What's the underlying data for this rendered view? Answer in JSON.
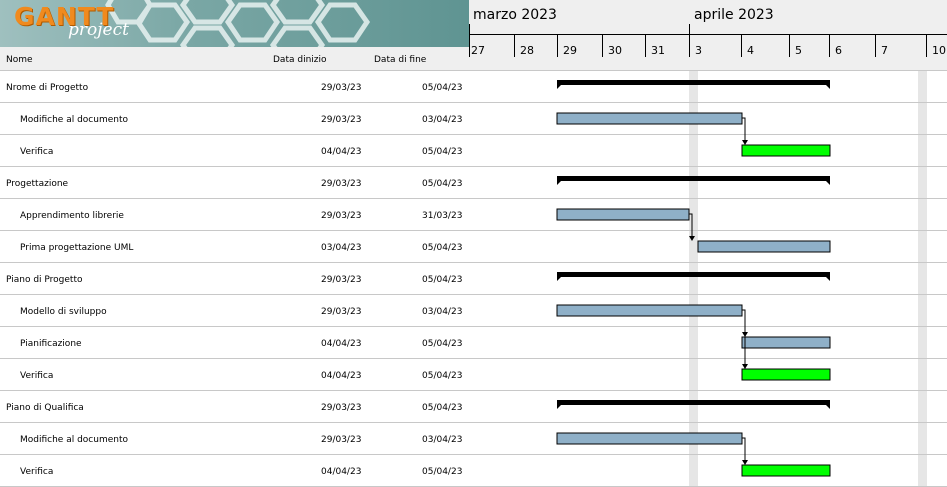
{
  "logo": {
    "brand": "GANTT",
    "sub": "project"
  },
  "table_header": {
    "name": "Nome",
    "start": "Data dinizio",
    "end": "Data di fine"
  },
  "timeline": {
    "months": [
      {
        "label": "marzo 2023"
      },
      {
        "label": "aprile 2023"
      }
    ],
    "days": [
      "27",
      "28",
      "29",
      "30",
      "31",
      "3",
      "4",
      "5",
      "6",
      "7",
      "10"
    ]
  },
  "tasks": [
    {
      "name": "Nrome di Progetto",
      "start": "29/03/23",
      "end": "05/04/23",
      "level": 0,
      "type": "summary"
    },
    {
      "name": "Modifiche al documento",
      "start": "29/03/23",
      "end": "03/04/23",
      "level": 1,
      "type": "task",
      "color": "#8fb0c8"
    },
    {
      "name": "Verifica",
      "start": "04/04/23",
      "end": "05/04/23",
      "level": 1,
      "type": "task",
      "color": "#00ff00"
    },
    {
      "name": "Progettazione",
      "start": "29/03/23",
      "end": "05/04/23",
      "level": 0,
      "type": "summary"
    },
    {
      "name": "Apprendimento librerie",
      "start": "29/03/23",
      "end": "31/03/23",
      "level": 1,
      "type": "task",
      "color": "#8fb0c8"
    },
    {
      "name": "Prima progettazione UML",
      "start": "03/04/23",
      "end": "05/04/23",
      "level": 1,
      "type": "task",
      "color": "#8fb0c8"
    },
    {
      "name": "Piano di Progetto",
      "start": "29/03/23",
      "end": "05/04/23",
      "level": 0,
      "type": "summary"
    },
    {
      "name": "Modello di sviluppo",
      "start": "29/03/23",
      "end": "03/04/23",
      "level": 1,
      "type": "task",
      "color": "#8fb0c8"
    },
    {
      "name": "Pianificazione",
      "start": "04/04/23",
      "end": "05/04/23",
      "level": 1,
      "type": "task",
      "color": "#8fb0c8"
    },
    {
      "name": "Verifica",
      "start": "04/04/23",
      "end": "05/04/23",
      "level": 1,
      "type": "task",
      "color": "#00ff00"
    },
    {
      "name": "Piano di Qualifica",
      "start": "29/03/23",
      "end": "05/04/23",
      "level": 0,
      "type": "summary"
    },
    {
      "name": "Modifiche al documento",
      "start": "29/03/23",
      "end": "03/04/23",
      "level": 1,
      "type": "task",
      "color": "#8fb0c8"
    },
    {
      "name": "Verifica",
      "start": "04/04/23",
      "end": "05/04/23",
      "level": 1,
      "type": "task",
      "color": "#00ff00"
    }
  ],
  "dependencies": [
    {
      "from": 1,
      "to": 2
    },
    {
      "from": 4,
      "to": 5
    },
    {
      "from": 7,
      "to": 8
    },
    {
      "from": 7,
      "to": 9
    },
    {
      "from": 11,
      "to": 12
    }
  ]
}
